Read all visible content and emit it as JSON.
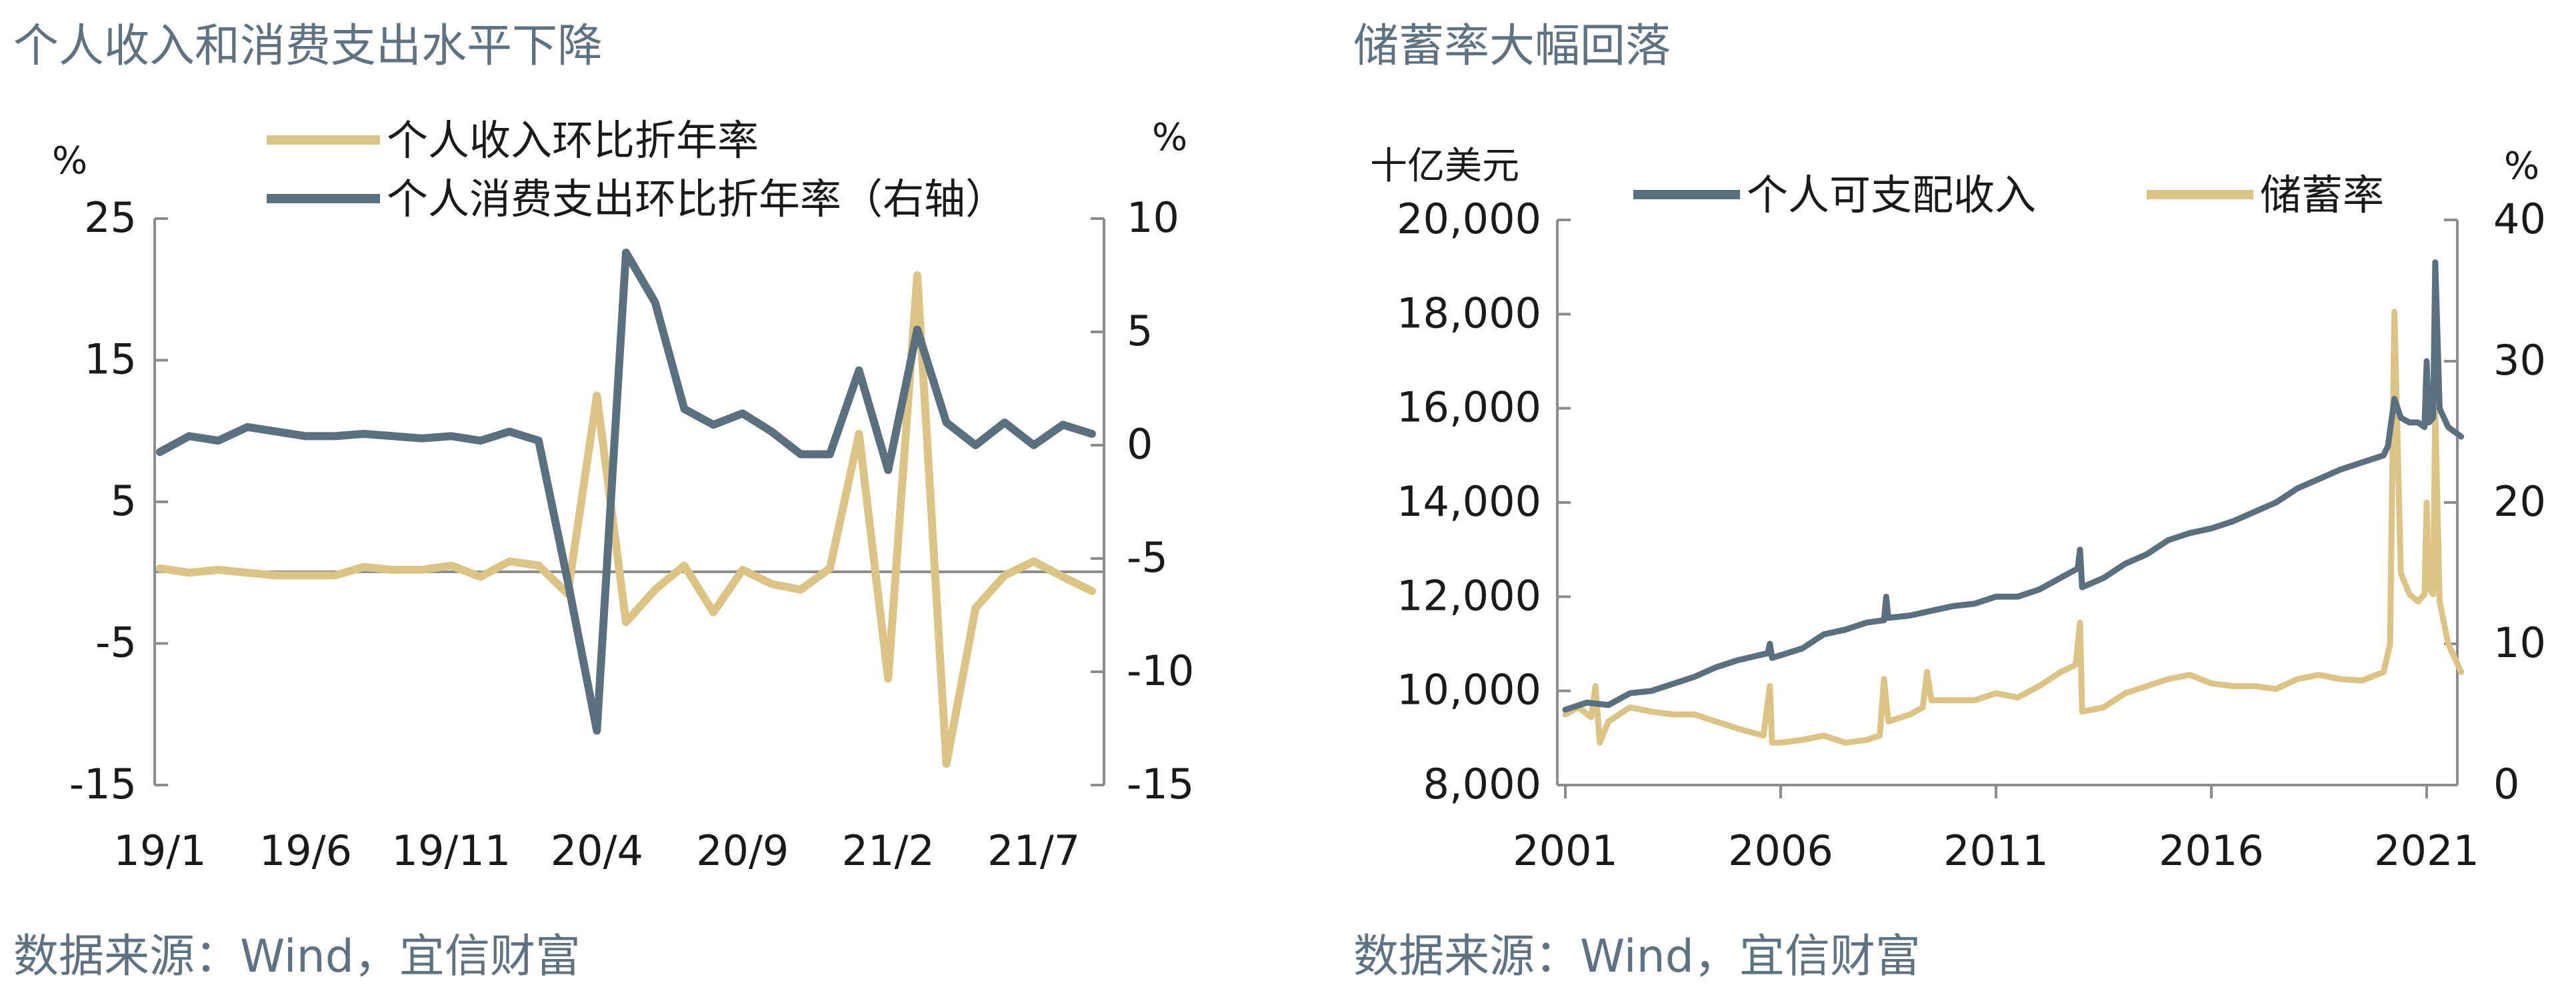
{
  "colors": {
    "income": "#dcc486",
    "spending": "#5b707e",
    "title": "#5f7282",
    "axis": "#8c8c8c"
  },
  "left": {
    "title": "个人收入和消费支出水平下降",
    "source": "数据来源：Wind，宜信财富",
    "chart_data": {
      "type": "line",
      "x": [
        "19/1",
        "19/2",
        "19/3",
        "19/4",
        "19/5",
        "19/6",
        "19/7",
        "19/8",
        "19/9",
        "19/10",
        "19/11",
        "19/12",
        "20/1",
        "20/2",
        "20/3",
        "20/4",
        "20/5",
        "20/6",
        "20/7",
        "20/8",
        "20/9",
        "20/10",
        "20/11",
        "20/12",
        "21/1",
        "21/2",
        "21/3",
        "21/4",
        "21/5",
        "21/6",
        "21/7",
        "21/8",
        "21/9"
      ],
      "xticks": [
        "19/1",
        "19/6",
        "19/11",
        "20/4",
        "20/9",
        "21/2",
        "21/7"
      ],
      "left_axis": {
        "unit": "%",
        "ylim": [
          -15,
          25
        ],
        "ticks": [
          "25",
          "15",
          "5",
          "-5",
          "-15"
        ]
      },
      "right_axis": {
        "unit": "%",
        "ylim": [
          -15,
          10
        ],
        "ticks": [
          "10",
          "5",
          "0",
          "-5",
          "-10",
          "-15"
        ]
      },
      "series": [
        {
          "name": "个人收入环比折年率",
          "axis": "left",
          "values": [
            0.3,
            0,
            0.2,
            0,
            -0.2,
            -0.2,
            -0.2,
            0.4,
            0.2,
            0.2,
            0.5,
            -0.3,
            0.8,
            0.5,
            -1.5,
            12.5,
            -3.5,
            -1.2,
            0.5,
            -2.8,
            0.2,
            -0.8,
            -1.2,
            0.3,
            9.8,
            -7.5,
            21,
            -13.5,
            -2.5,
            -0.2,
            0.8,
            -0.3,
            -1.3
          ]
        },
        {
          "name": "个人消费支出环比折年率（右轴）",
          "axis": "right",
          "values": [
            -0.3,
            0.4,
            0.2,
            0.8,
            0.6,
            0.4,
            0.4,
            0.5,
            0.4,
            0.3,
            0.4,
            0.2,
            0.6,
            0.2,
            -6,
            -12.6,
            8.5,
            6.3,
            1.6,
            0.9,
            1.4,
            0.6,
            -0.4,
            -0.4,
            3.3,
            -1.1,
            5.1,
            1,
            0,
            1,
            0,
            0.9,
            0.5
          ]
        }
      ]
    }
  },
  "right": {
    "title": "储蓄率大幅回落",
    "source": "数据来源：Wind，宜信财富",
    "chart_data": {
      "type": "line",
      "xticks": [
        "2001",
        "2006",
        "2011",
        "2016",
        "2021"
      ],
      "left_axis": {
        "unit": "十亿美元",
        "ylim": [
          8000,
          20000
        ],
        "ticks": [
          "20,000",
          "18,000",
          "16,000",
          "14,000",
          "12,000",
          "10,000",
          "8,000"
        ]
      },
      "right_axis": {
        "unit": "%",
        "ylim": [
          0,
          40
        ],
        "ticks": [
          "40",
          "30",
          "20",
          "10",
          "0"
        ]
      },
      "series": [
        {
          "name": "个人可支配收入",
          "axis": "left",
          "points": [
            [
              2001.0,
              9600
            ],
            [
              2001.5,
              9750
            ],
            [
              2002.0,
              9700
            ],
            [
              2002.5,
              9950
            ],
            [
              2003.0,
              10000
            ],
            [
              2003.5,
              10150
            ],
            [
              2004.0,
              10300
            ],
            [
              2004.5,
              10500
            ],
            [
              2005.0,
              10650
            ],
            [
              2005.7,
              10800
            ],
            [
              2005.75,
              11000
            ],
            [
              2005.8,
              10700
            ],
            [
              2006.5,
              10900
            ],
            [
              2007.0,
              11200
            ],
            [
              2007.5,
              11300
            ],
            [
              2008.0,
              11450
            ],
            [
              2008.4,
              11500
            ],
            [
              2008.45,
              12000
            ],
            [
              2008.5,
              11550
            ],
            [
              2009.0,
              11600
            ],
            [
              2009.5,
              11700
            ],
            [
              2010.0,
              11800
            ],
            [
              2010.5,
              11850
            ],
            [
              2011.0,
              12000
            ],
            [
              2011.5,
              12000
            ],
            [
              2012.0,
              12150
            ],
            [
              2012.5,
              12400
            ],
            [
              2012.9,
              12600
            ],
            [
              2012.95,
              13000
            ],
            [
              2013.0,
              12200
            ],
            [
              2013.5,
              12400
            ],
            [
              2014.0,
              12700
            ],
            [
              2014.5,
              12900
            ],
            [
              2015.0,
              13200
            ],
            [
              2015.5,
              13350
            ],
            [
              2016.0,
              13450
            ],
            [
              2016.5,
              13600
            ],
            [
              2017.0,
              13800
            ],
            [
              2017.5,
              14000
            ],
            [
              2018.0,
              14300
            ],
            [
              2018.5,
              14500
            ],
            [
              2019.0,
              14700
            ],
            [
              2019.5,
              14850
            ],
            [
              2020.0,
              15000
            ],
            [
              2020.1,
              15200
            ],
            [
              2020.25,
              16200
            ],
            [
              2020.4,
              15800
            ],
            [
              2020.6,
              15700
            ],
            [
              2020.8,
              15700
            ],
            [
              2020.95,
              15600
            ],
            [
              2021.0,
              17000
            ],
            [
              2021.05,
              15700
            ],
            [
              2021.15,
              15800
            ],
            [
              2021.2,
              19100
            ],
            [
              2021.3,
              16000
            ],
            [
              2021.5,
              15600
            ],
            [
              2021.8,
              15400
            ]
          ]
        },
        {
          "name": "储蓄率",
          "axis": "right",
          "points": [
            [
              2001.0,
              5
            ],
            [
              2001.3,
              5.5
            ],
            [
              2001.6,
              4.8
            ],
            [
              2001.7,
              7
            ],
            [
              2001.8,
              3
            ],
            [
              2002.0,
              4.5
            ],
            [
              2002.5,
              5.5
            ],
            [
              2003.0,
              5.2
            ],
            [
              2003.5,
              5
            ],
            [
              2004.0,
              5
            ],
            [
              2004.5,
              4.5
            ],
            [
              2005.0,
              4
            ],
            [
              2005.6,
              3.5
            ],
            [
              2005.75,
              7
            ],
            [
              2005.8,
              3
            ],
            [
              2006.0,
              3
            ],
            [
              2006.5,
              3.2
            ],
            [
              2007.0,
              3.5
            ],
            [
              2007.5,
              3
            ],
            [
              2008.0,
              3.2
            ],
            [
              2008.3,
              3.5
            ],
            [
              2008.4,
              7.5
            ],
            [
              2008.5,
              4.5
            ],
            [
              2009.0,
              5
            ],
            [
              2009.3,
              5.5
            ],
            [
              2009.4,
              8
            ],
            [
              2009.5,
              6
            ],
            [
              2010.0,
              6
            ],
            [
              2010.5,
              6
            ],
            [
              2011.0,
              6.5
            ],
            [
              2011.5,
              6.2
            ],
            [
              2012.0,
              7
            ],
            [
              2012.5,
              8
            ],
            [
              2012.85,
              8.5
            ],
            [
              2012.95,
              11.5
            ],
            [
              2013.0,
              5.2
            ],
            [
              2013.5,
              5.5
            ],
            [
              2014.0,
              6.5
            ],
            [
              2014.5,
              7
            ],
            [
              2015.0,
              7.5
            ],
            [
              2015.5,
              7.8
            ],
            [
              2016.0,
              7.2
            ],
            [
              2016.5,
              7
            ],
            [
              2017.0,
              7
            ],
            [
              2017.5,
              6.8
            ],
            [
              2018.0,
              7.5
            ],
            [
              2018.5,
              7.8
            ],
            [
              2019.0,
              7.5
            ],
            [
              2019.5,
              7.4
            ],
            [
              2020.0,
              8
            ],
            [
              2020.15,
              10
            ],
            [
              2020.25,
              33.5
            ],
            [
              2020.4,
              15
            ],
            [
              2020.6,
              13.5
            ],
            [
              2020.8,
              13
            ],
            [
              2020.95,
              13.5
            ],
            [
              2021.0,
              20
            ],
            [
              2021.05,
              14
            ],
            [
              2021.15,
              13.5
            ],
            [
              2021.2,
              26.5
            ],
            [
              2021.3,
              13
            ],
            [
              2021.5,
              10
            ],
            [
              2021.8,
              8
            ]
          ]
        }
      ]
    }
  }
}
